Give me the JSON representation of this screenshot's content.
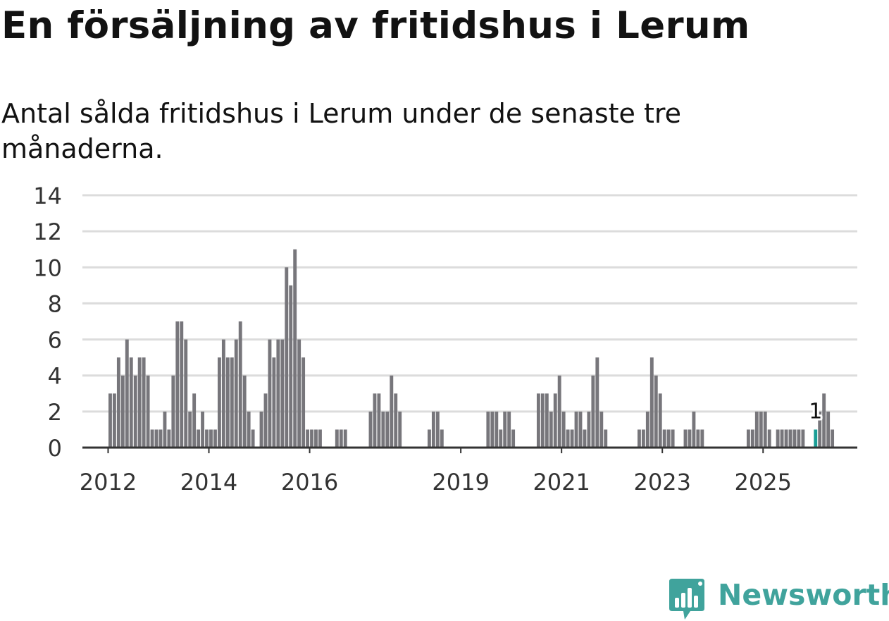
{
  "header": {
    "title": "En försäljning av fritidshus i Lerum",
    "subtitle": "Antal sålda fritidshus i Lerum under de senaste tre månaderna."
  },
  "brand": {
    "name": "Newsworthy",
    "icon": "newsworthy-logo-icon",
    "color": "#40a39c"
  },
  "colors": {
    "bar": "#77767b",
    "highlight": "#1a9e96",
    "grid": "#dcdcdc",
    "axis": "#333333",
    "text": "#333333"
  },
  "chart_data": {
    "type": "bar",
    "title": "En försäljning av fritidshus i Lerum",
    "subtitle": "Antal sålda fritidshus i Lerum under de senaste tre månaderna.",
    "xlabel": "",
    "ylabel": "",
    "ylim": [
      0,
      14
    ],
    "yticks": [
      0,
      2,
      4,
      6,
      8,
      10,
      12,
      14
    ],
    "xlim": [
      2011.49,
      2026.87
    ],
    "xticks": [
      {
        "label": "2012",
        "value": 2012
      },
      {
        "label": "2014",
        "value": 2014
      },
      {
        "label": "2016",
        "value": 2016
      },
      {
        "label": "2019",
        "value": 2019
      },
      {
        "label": "2021",
        "value": 2021
      },
      {
        "label": "2023",
        "value": 2023
      },
      {
        "label": "2025",
        "value": 2025
      }
    ],
    "grid": true,
    "legend": "none",
    "start": {
      "year": 2012,
      "month": 1
    },
    "frequency": "monthly",
    "values": [
      3,
      3,
      5,
      4,
      6,
      5,
      4,
      5,
      5,
      4,
      1,
      1,
      1,
      2,
      1,
      4,
      7,
      7,
      6,
      2,
      3,
      1,
      2,
      1,
      1,
      1,
      5,
      6,
      5,
      5,
      6,
      7,
      4,
      2,
      1,
      0,
      2,
      3,
      6,
      5,
      6,
      6,
      10,
      9,
      11,
      6,
      5,
      1,
      1,
      1,
      1,
      0,
      0,
      0,
      1,
      1,
      1,
      0,
      0,
      0,
      0,
      0,
      2,
      3,
      3,
      2,
      2,
      4,
      3,
      2,
      0,
      0,
      0,
      0,
      0,
      0,
      1,
      2,
      2,
      1,
      0,
      0,
      0,
      0,
      0,
      0,
      0,
      0,
      0,
      0,
      2,
      2,
      2,
      1,
      2,
      2,
      1,
      0,
      0,
      0,
      0,
      0,
      3,
      3,
      3,
      2,
      3,
      4,
      2,
      1,
      1,
      2,
      2,
      1,
      2,
      4,
      5,
      2,
      1,
      0,
      0,
      0,
      0,
      0,
      0,
      0,
      1,
      1,
      2,
      5,
      4,
      3,
      1,
      1,
      1,
      0,
      0,
      1,
      1,
      2,
      1,
      1,
      0,
      0,
      0,
      0,
      0,
      0,
      0,
      0,
      0,
      0,
      1,
      1,
      2,
      2,
      2,
      1,
      0,
      1,
      1,
      1,
      1,
      1,
      1,
      1,
      0,
      0,
      1,
      2,
      3,
      2,
      1
    ],
    "highlight": {
      "index": 168,
      "value": 1,
      "label": "1"
    }
  }
}
